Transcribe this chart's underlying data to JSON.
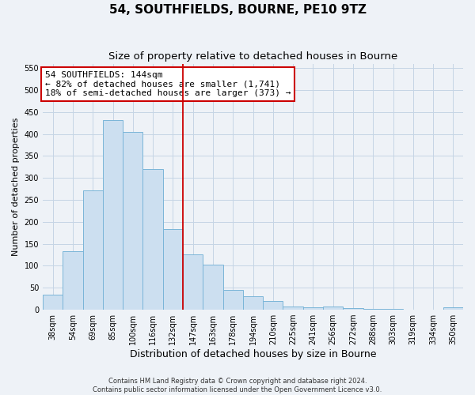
{
  "title": "54, SOUTHFIELDS, BOURNE, PE10 9TZ",
  "subtitle": "Size of property relative to detached houses in Bourne",
  "xlabel": "Distribution of detached houses by size in Bourne",
  "ylabel": "Number of detached properties",
  "categories": [
    "38sqm",
    "54sqm",
    "69sqm",
    "85sqm",
    "100sqm",
    "116sqm",
    "132sqm",
    "147sqm",
    "163sqm",
    "178sqm",
    "194sqm",
    "210sqm",
    "225sqm",
    "241sqm",
    "256sqm",
    "272sqm",
    "288sqm",
    "303sqm",
    "319sqm",
    "334sqm",
    "350sqm"
  ],
  "values": [
    35,
    133,
    272,
    432,
    405,
    321,
    184,
    126,
    103,
    45,
    30,
    20,
    7,
    5,
    8,
    4,
    2,
    2,
    1,
    1,
    6
  ],
  "bar_color": "#ccdff0",
  "bar_edge_color": "#7ab5d8",
  "vline_x_index": 7,
  "vline_color": "#cc0000",
  "annotation_title": "54 SOUTHFIELDS: 144sqm",
  "annotation_line1": "← 82% of detached houses are smaller (1,741)",
  "annotation_line2": "18% of semi-detached houses are larger (373) →",
  "annotation_box_color": "#ffffff",
  "annotation_box_edge": "#cc0000",
  "ylim": [
    0,
    560
  ],
  "yticks": [
    0,
    50,
    100,
    150,
    200,
    250,
    300,
    350,
    400,
    450,
    500,
    550
  ],
  "footer1": "Contains HM Land Registry data © Crown copyright and database right 2024.",
  "footer2": "Contains public sector information licensed under the Open Government Licence v3.0.",
  "background_color": "#eef2f7",
  "plot_background": "#eef2f7",
  "grid_color": "#c5d5e5",
  "title_fontsize": 11,
  "subtitle_fontsize": 9.5,
  "xlabel_fontsize": 9,
  "ylabel_fontsize": 8,
  "tick_fontsize": 7,
  "annot_fontsize": 8,
  "footer_fontsize": 6
}
